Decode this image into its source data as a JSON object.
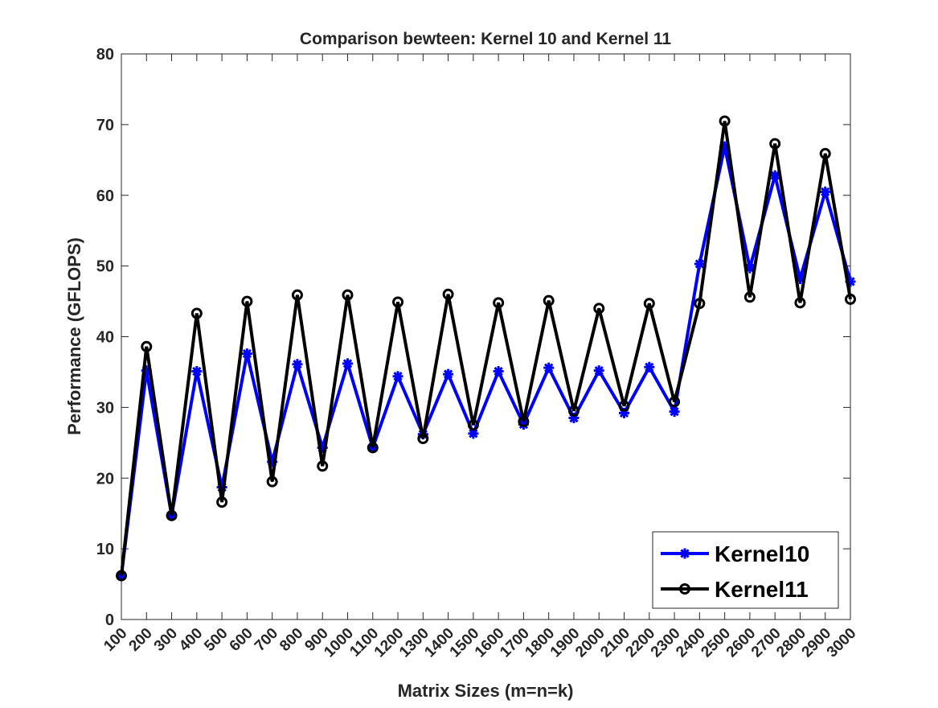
{
  "chart_data": {
    "type": "line",
    "title": "Comparison bewteen: Kernel 10 and Kernel 11",
    "xlabel": "Matrix Sizes (m=n=k)",
    "ylabel": "Performance (GFLOPS)",
    "ylim": [
      0,
      80
    ],
    "yticks": [
      "0",
      "10",
      "20",
      "30",
      "40",
      "50",
      "60",
      "70",
      "80"
    ],
    "categories": [
      "100",
      "200",
      "300",
      "400",
      "500",
      "600",
      "700",
      "800",
      "900",
      "1000",
      "1100",
      "1200",
      "1300",
      "1400",
      "1500",
      "1600",
      "1700",
      "1800",
      "1900",
      "2000",
      "2100",
      "2200",
      "2300",
      "2400",
      "2500",
      "2600",
      "2700",
      "2800",
      "2900",
      "3000"
    ],
    "grid": false,
    "legend_position": "bottom-right",
    "series": [
      {
        "name": "Kernel10",
        "color": "#0000ff",
        "marker": "asterisk",
        "values": [
          6.2,
          35.2,
          14.7,
          35.1,
          18.7,
          37.6,
          22.3,
          36.1,
          24.3,
          36.2,
          24.3,
          34.4,
          26.2,
          34.7,
          26.3,
          35.1,
          27.6,
          35.6,
          28.5,
          35.2,
          29.2,
          35.7,
          29.4,
          50.3,
          66.9,
          49.7,
          62.8,
          48.2,
          60.5,
          47.8
        ]
      },
      {
        "name": "Kernel11",
        "color": "#000000",
        "marker": "circle",
        "values": [
          6.2,
          38.6,
          14.7,
          43.3,
          16.6,
          45.0,
          19.5,
          45.9,
          21.7,
          45.9,
          24.3,
          44.9,
          25.6,
          46.0,
          27.5,
          44.8,
          28.0,
          45.1,
          29.5,
          44.0,
          30.2,
          44.7,
          30.8,
          44.7,
          70.5,
          45.6,
          67.3,
          44.8,
          65.9,
          45.3
        ]
      }
    ]
  }
}
